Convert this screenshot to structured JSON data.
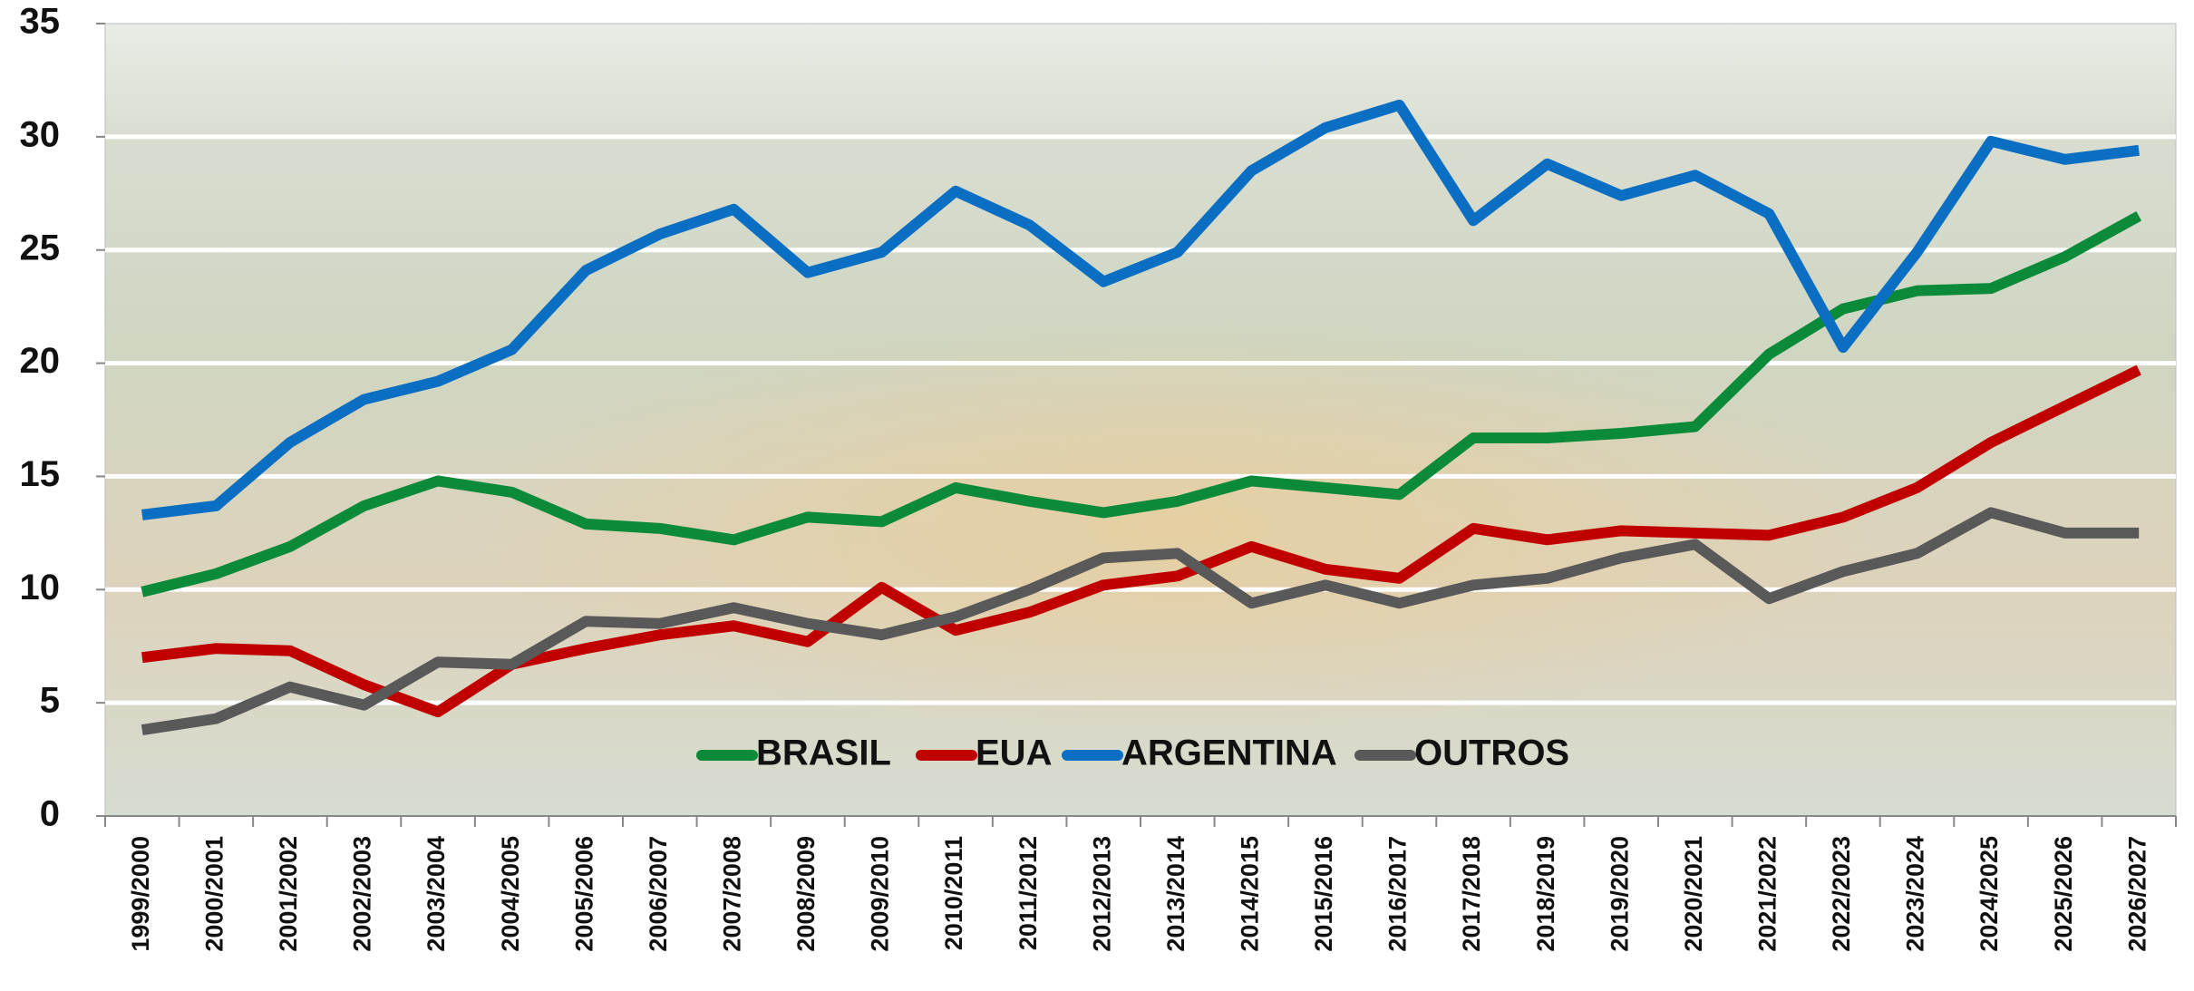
{
  "chart_data": {
    "type": "line",
    "categories": [
      "1999/2000",
      "2000/2001",
      "2001/2002",
      "2002/2003",
      "2003/2004",
      "2004/2005",
      "2005/2006",
      "2006/2007",
      "2007/2008",
      "2008/2009",
      "2009/2010",
      "2010/2011",
      "2011/2012",
      "2012/2013",
      "2013/2014",
      "2014/2015",
      "2015/2016",
      "2016/2017",
      "2017/2018",
      "2018/2019",
      "2019/2020",
      "2020/2021",
      "2021/2022",
      "2022/2023",
      "2023/2024",
      "2024/2025",
      "2025/2026",
      "2026/2027"
    ],
    "series": [
      {
        "name": "BRASIL",
        "color": "#0b8a3a",
        "values": [
          9.9,
          10.7,
          11.9,
          13.7,
          14.8,
          14.3,
          12.9,
          12.7,
          12.2,
          13.2,
          13.0,
          14.5,
          13.9,
          13.4,
          13.9,
          14.8,
          14.5,
          14.2,
          16.7,
          16.7,
          16.9,
          17.2,
          20.4,
          22.4,
          23.2,
          23.3,
          24.7,
          26.5
        ]
      },
      {
        "name": "EUA",
        "color": "#c00000",
        "values": [
          7.0,
          7.4,
          7.3,
          5.8,
          4.6,
          6.7,
          7.4,
          8.0,
          8.4,
          7.7,
          10.1,
          8.2,
          9.0,
          10.2,
          10.6,
          11.9,
          10.9,
          10.5,
          12.7,
          12.2,
          12.6,
          12.5,
          12.4,
          13.2,
          14.5,
          16.5,
          18.1,
          19.7
        ]
      },
      {
        "name": "ARGENTINA",
        "color": "#0a6fc2",
        "values": [
          13.3,
          13.7,
          16.5,
          18.4,
          19.2,
          20.6,
          24.1,
          25.7,
          26.8,
          24.0,
          24.9,
          27.6,
          26.1,
          23.6,
          24.9,
          28.5,
          30.4,
          31.4,
          26.3,
          28.8,
          27.4,
          28.3,
          26.6,
          20.7,
          24.9,
          29.8,
          29.0,
          29.4
        ]
      },
      {
        "name": "OUTROS",
        "color": "#595959",
        "values": [
          3.8,
          4.3,
          5.7,
          4.9,
          6.8,
          6.7,
          8.6,
          8.5,
          9.2,
          8.5,
          8.0,
          8.8,
          10.0,
          11.4,
          11.6,
          9.4,
          10.2,
          9.4,
          10.2,
          10.5,
          11.4,
          12.0,
          9.6,
          10.8,
          11.6,
          13.4,
          12.5,
          12.5
        ]
      }
    ],
    "ylim": [
      0,
      35
    ],
    "yticks": [
      0,
      5,
      10,
      15,
      20,
      25,
      30,
      35
    ],
    "grid": true
  }
}
